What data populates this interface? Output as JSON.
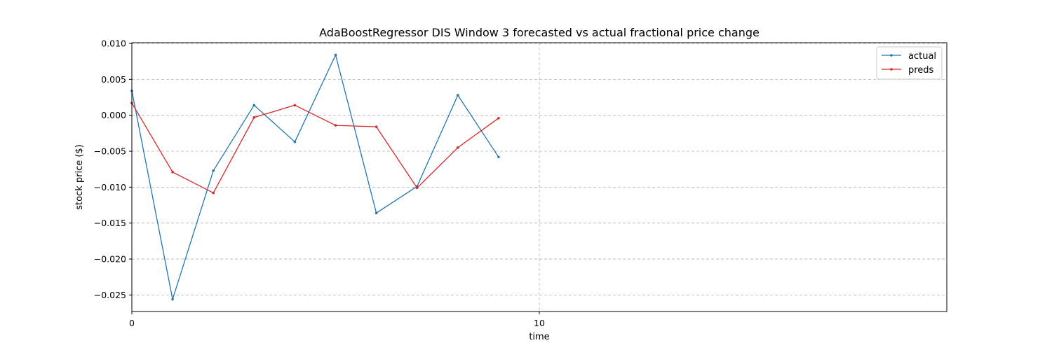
{
  "chart_data": {
    "type": "line",
    "title": "AdaBoostRegressor DIS Window 3 forecasted vs actual fractional price change",
    "xlabel": "time",
    "ylabel": "stock price ($)",
    "xlim": [
      0,
      20
    ],
    "ylim": [
      -0.0273,
      0.0101
    ],
    "xticks": [
      0,
      10
    ],
    "yticks": [
      0.01,
      0.005,
      0.0,
      -0.005,
      -0.01,
      -0.015,
      -0.02,
      -0.025
    ],
    "ytick_labels": [
      "0.010",
      "0.005",
      "0.000",
      "−0.005",
      "−0.010",
      "−0.015",
      "−0.020",
      "−0.025"
    ],
    "grid": true,
    "legend_position": "top-right",
    "x": [
      0,
      1,
      2,
      3,
      4,
      5,
      6,
      7,
      8,
      9
    ],
    "series": [
      {
        "name": "actual",
        "color": "#1f77b4",
        "values": [
          0.0034,
          -0.0256,
          -0.0077,
          0.0014,
          -0.0037,
          0.0084,
          -0.0136,
          -0.0099,
          0.0028,
          -0.0058
        ]
      },
      {
        "name": "preds",
        "color": "#d62728",
        "values": [
          0.0017,
          -0.0079,
          -0.0108,
          -0.0003,
          0.0014,
          -0.0014,
          -0.0016,
          -0.0101,
          -0.0045,
          -0.0004
        ]
      }
    ]
  }
}
